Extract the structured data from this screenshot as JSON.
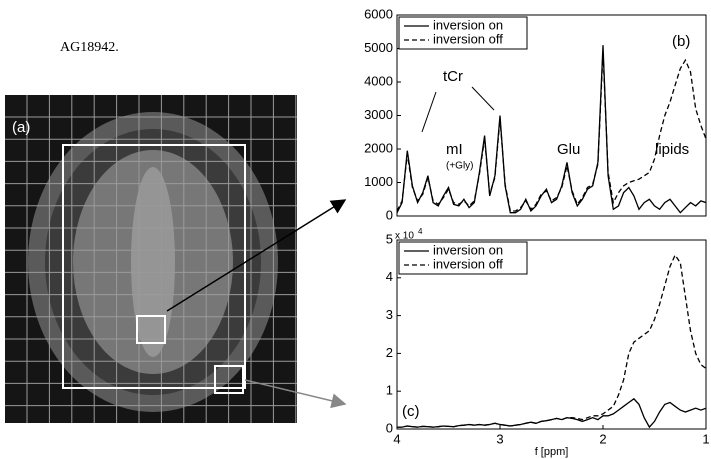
{
  "text_fragment": "AG18942.",
  "panel_a_label": "(a)",
  "chart_data": [
    {
      "type": "line",
      "panel_label": "(b)",
      "x": [
        4,
        3.95,
        3.9,
        3.85,
        3.8,
        3.75,
        3.7,
        3.65,
        3.6,
        3.55,
        3.5,
        3.45,
        3.4,
        3.35,
        3.3,
        3.25,
        3.2,
        3.15,
        3.1,
        3.05,
        3,
        2.95,
        2.9,
        2.85,
        2.8,
        2.75,
        2.7,
        2.65,
        2.6,
        2.55,
        2.5,
        2.45,
        2.4,
        2.35,
        2.3,
        2.25,
        2.2,
        2.15,
        2.1,
        2.05,
        2,
        1.95,
        1.9,
        1.85,
        1.8,
        1.75,
        1.7,
        1.65,
        1.6,
        1.55,
        1.5,
        1.45,
        1.4,
        1.35,
        1.3,
        1.25,
        1.2,
        1.15,
        1.1,
        1.05,
        1
      ],
      "xlim": [
        4,
        1
      ],
      "ylim": [
        0,
        6000
      ],
      "yticks": [
        0,
        1000,
        2000,
        3000,
        4000,
        5000,
        6000
      ],
      "legend": "upper left",
      "annotations": [
        "tCr",
        "mI",
        "(+Gly)",
        "Glu",
        "lipids"
      ],
      "series": [
        {
          "name": "inversion on",
          "color": "#000000",
          "line_style": "solid",
          "values": [
            100,
            400,
            1950,
            900,
            400,
            700,
            1200,
            400,
            300,
            600,
            850,
            350,
            300,
            500,
            250,
            400,
            1300,
            2400,
            600,
            1200,
            3000,
            900,
            100,
            100,
            200,
            500,
            150,
            300,
            600,
            800,
            400,
            500,
            900,
            1600,
            700,
            300,
            500,
            800,
            900,
            1600,
            5100,
            1200,
            200,
            300,
            700,
            850,
            600,
            200,
            400,
            500,
            300,
            200,
            400,
            500,
            300,
            100,
            250,
            400,
            300,
            450,
            400
          ]
        },
        {
          "name": "inversion off",
          "color": "#000000",
          "line_style": "dashed",
          "values": [
            150,
            450,
            1850,
            850,
            450,
            650,
            1150,
            450,
            350,
            550,
            800,
            400,
            350,
            450,
            300,
            450,
            1250,
            2300,
            650,
            1150,
            2900,
            950,
            150,
            150,
            250,
            450,
            200,
            350,
            650,
            750,
            450,
            550,
            850,
            1500,
            750,
            350,
            550,
            850,
            950,
            1550,
            4900,
            1300,
            400,
            700,
            900,
            1000,
            1050,
            1100,
            1200,
            1300,
            1700,
            2400,
            3000,
            3400,
            3900,
            4400,
            4650,
            4300,
            3200,
            2700,
            2300
          ]
        }
      ]
    },
    {
      "type": "line",
      "panel_label": "(c)",
      "x": [
        4,
        3.95,
        3.9,
        3.85,
        3.8,
        3.75,
        3.7,
        3.65,
        3.6,
        3.55,
        3.5,
        3.45,
        3.4,
        3.35,
        3.3,
        3.25,
        3.2,
        3.15,
        3.1,
        3.05,
        3,
        2.95,
        2.9,
        2.85,
        2.8,
        2.75,
        2.7,
        2.65,
        2.6,
        2.55,
        2.5,
        2.45,
        2.4,
        2.35,
        2.3,
        2.25,
        2.2,
        2.15,
        2.1,
        2.05,
        2,
        1.95,
        1.9,
        1.85,
        1.8,
        1.75,
        1.7,
        1.65,
        1.6,
        1.55,
        1.5,
        1.45,
        1.4,
        1.35,
        1.3,
        1.25,
        1.2,
        1.15,
        1.1,
        1.05,
        1
      ],
      "xlim": [
        4,
        1
      ],
      "xticks": [
        4,
        3,
        2,
        1
      ],
      "xlabel": "f [ppm]",
      "ylim": [
        0,
        5
      ],
      "yticks": [
        0,
        1,
        2,
        3,
        4,
        5
      ],
      "y_multiplier": "x 10",
      "y_multiplier_exp": "4",
      "legend": "upper left",
      "series": [
        {
          "name": "inversion on",
          "color": "#000000",
          "line_style": "solid",
          "values": [
            0.05,
            0.05,
            0.08,
            0.06,
            0.05,
            0.07,
            0.06,
            0.05,
            0.06,
            0.08,
            0.07,
            0.06,
            0.09,
            0.1,
            0.12,
            0.1,
            0.12,
            0.1,
            0.12,
            0.15,
            0.12,
            0.1,
            0.08,
            0.1,
            0.12,
            0.15,
            0.18,
            0.15,
            0.2,
            0.22,
            0.25,
            0.28,
            0.25,
            0.3,
            0.28,
            0.25,
            0.2,
            0.25,
            0.3,
            0.25,
            0.35,
            0.35,
            0.4,
            0.5,
            0.6,
            0.7,
            0.8,
            0.65,
            0.3,
            0.05,
            0.2,
            0.45,
            0.65,
            0.7,
            0.6,
            0.5,
            0.45,
            0.5,
            0.55,
            0.5,
            0.55
          ]
        },
        {
          "name": "inversion off",
          "color": "#000000",
          "line_style": "dashed",
          "values": [
            0.05,
            0.05,
            0.08,
            0.06,
            0.05,
            0.07,
            0.06,
            0.05,
            0.06,
            0.08,
            0.07,
            0.06,
            0.09,
            0.1,
            0.12,
            0.1,
            0.12,
            0.1,
            0.12,
            0.15,
            0.12,
            0.1,
            0.08,
            0.1,
            0.12,
            0.15,
            0.18,
            0.15,
            0.2,
            0.22,
            0.25,
            0.28,
            0.25,
            0.3,
            0.3,
            0.28,
            0.25,
            0.3,
            0.35,
            0.35,
            0.4,
            0.5,
            0.6,
            0.9,
            1.3,
            2.0,
            2.3,
            2.4,
            2.5,
            2.6,
            2.9,
            3.3,
            3.8,
            4.3,
            4.6,
            4.4,
            3.5,
            2.6,
            2.0,
            1.7,
            1.6
          ]
        }
      ]
    }
  ]
}
